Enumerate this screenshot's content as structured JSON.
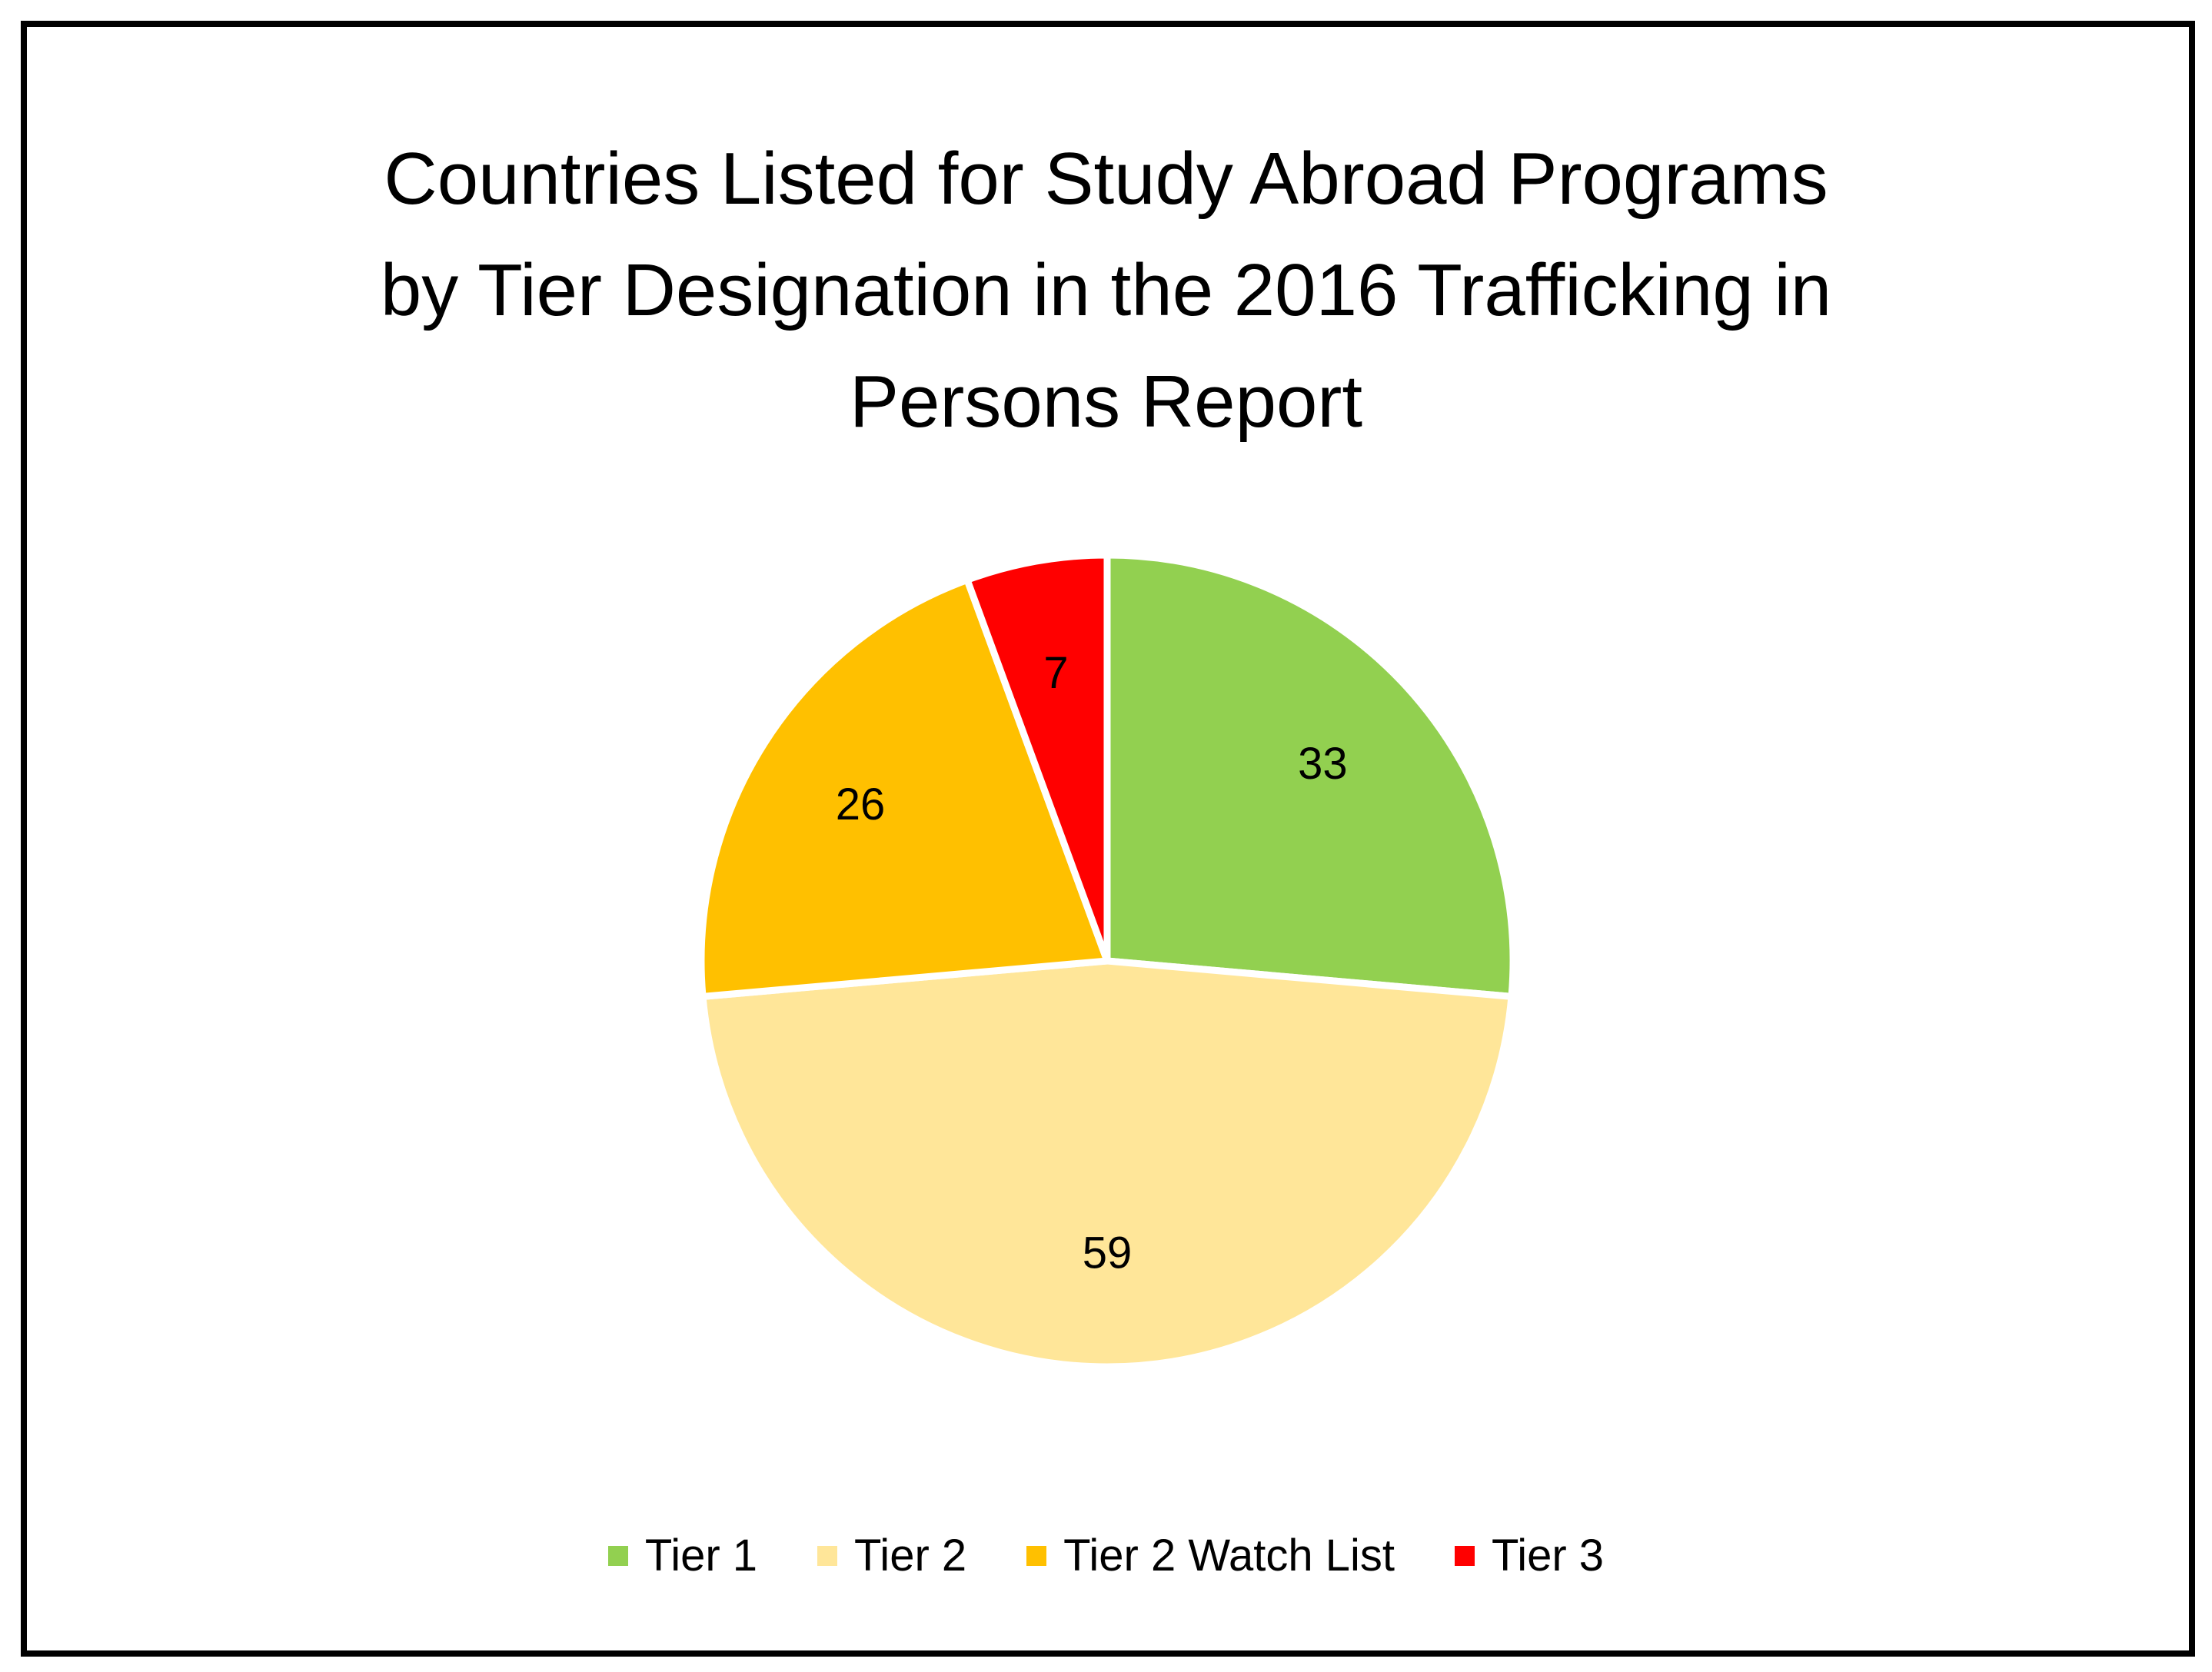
{
  "chart_data": {
    "type": "pie",
    "title_lines": [
      "Countries Listed for Study Abroad Programs",
      "by Tier Designation in the 2016 Trafficking in",
      "Persons Report"
    ],
    "categories": [
      "Tier 1",
      "Tier 2",
      "Tier 2 Watch List",
      "Tier 3"
    ],
    "values": [
      33,
      59,
      26,
      7
    ],
    "colors": [
      "#92D050",
      "#FFE699",
      "#FFC000",
      "#FF0000"
    ],
    "data_labels": [
      "33",
      "59",
      "26",
      "7"
    ],
    "legend_position": "bottom"
  }
}
